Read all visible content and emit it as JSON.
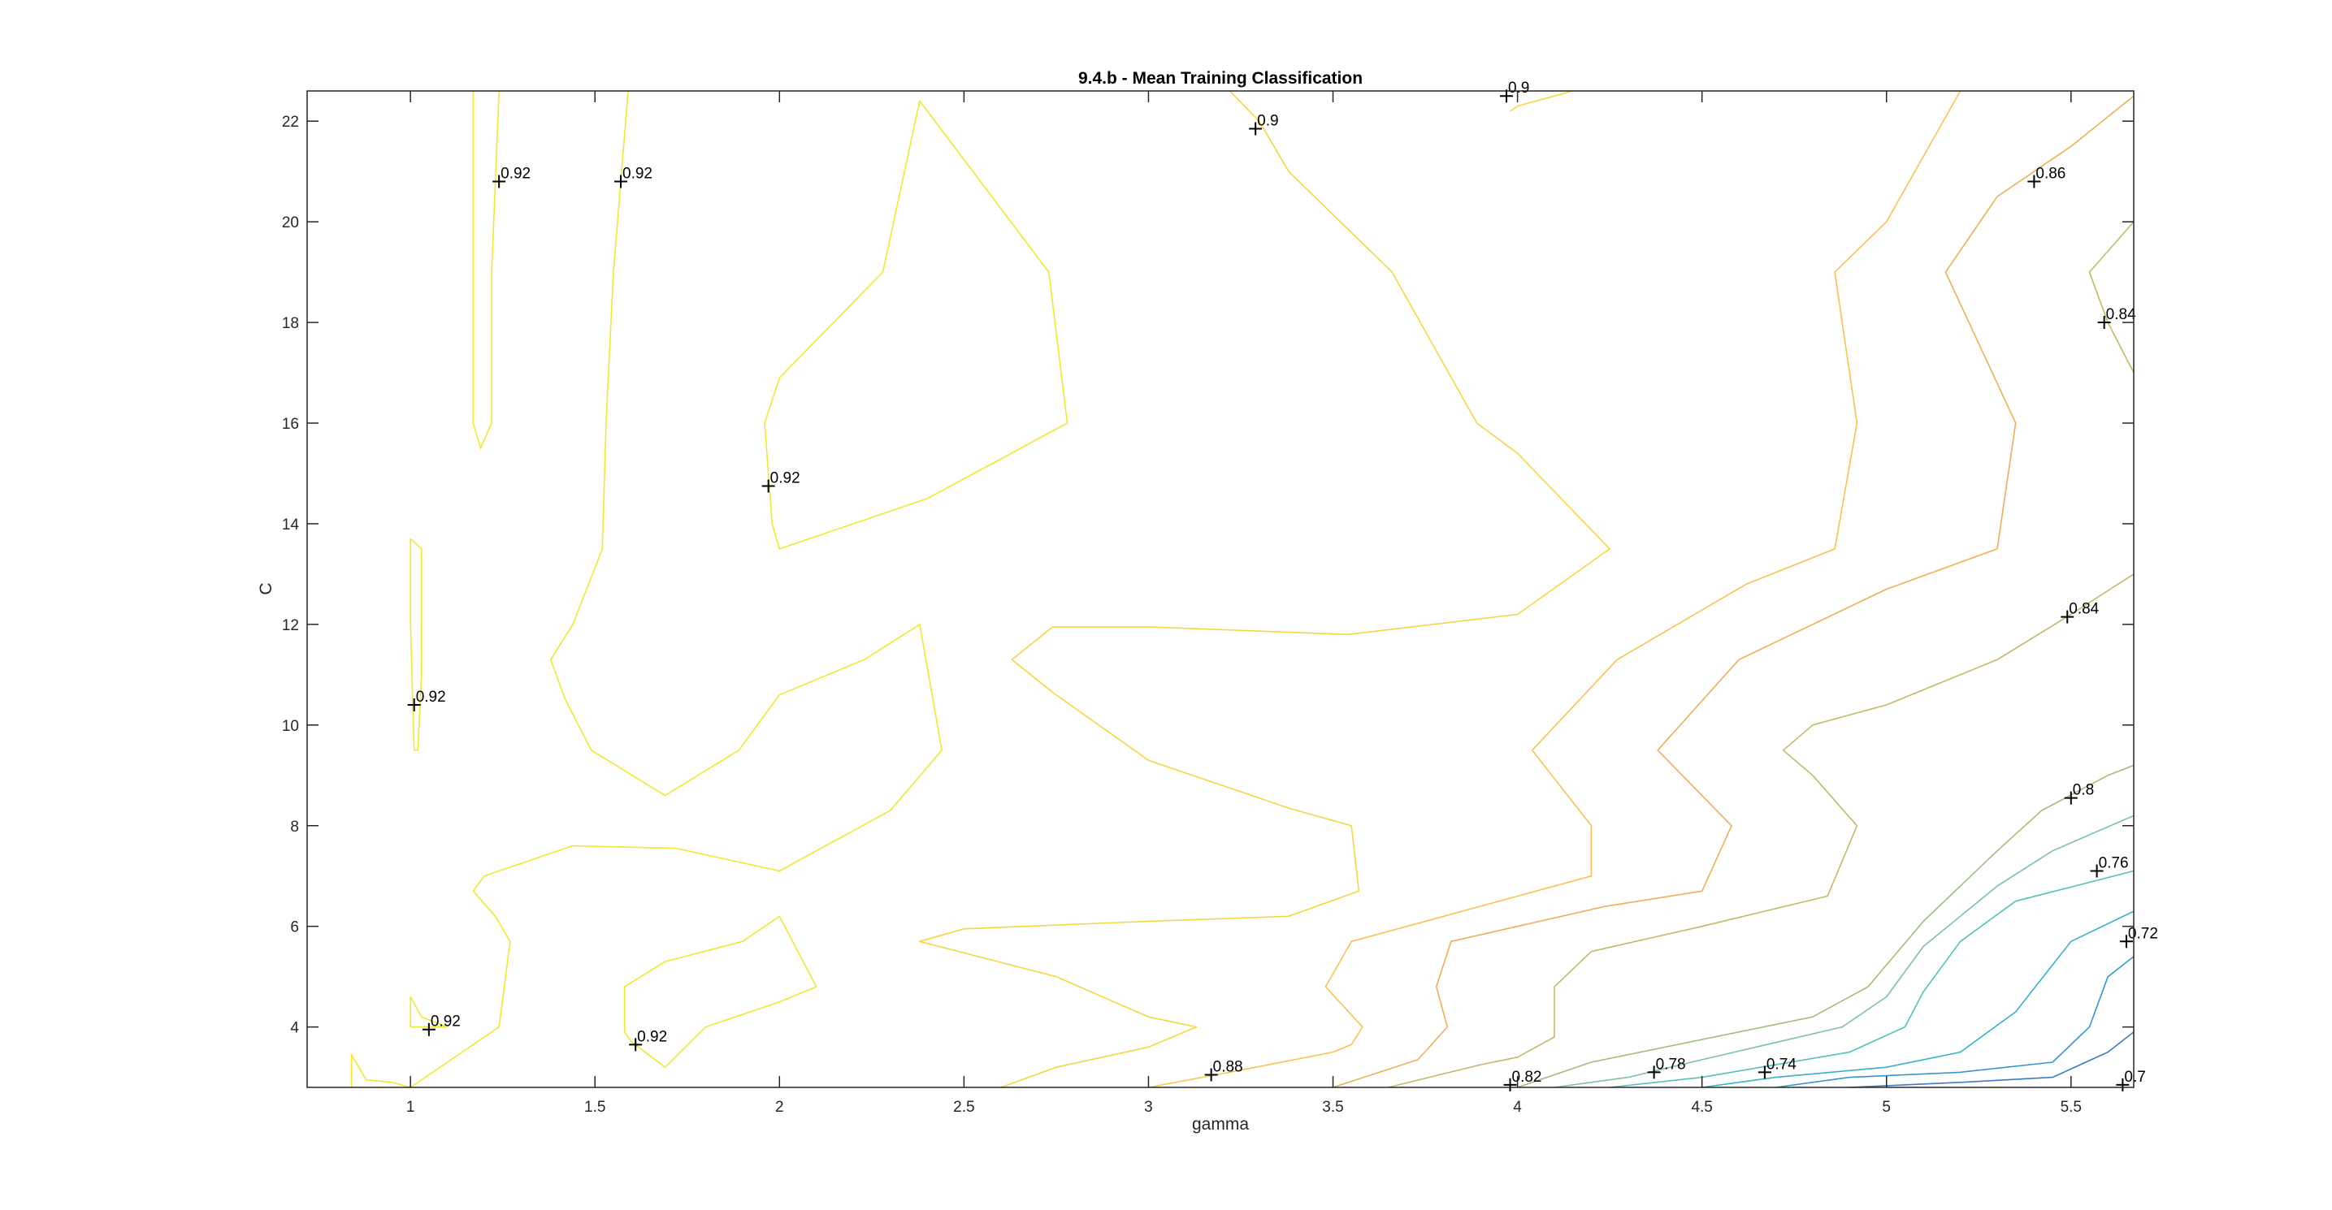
{
  "chart_data": {
    "type": "contour",
    "title": "9.4.b - Mean Training Classification",
    "xlabel": "gamma",
    "ylabel": "C",
    "xlim": [
      0.72,
      5.67
    ],
    "ylim": [
      2.8,
      22.6
    ],
    "x_ticks": [
      1,
      1.5,
      2,
      2.5,
      3,
      3.5,
      4,
      4.5,
      5,
      5.5
    ],
    "x_tick_labels": [
      "1",
      "1.5",
      "2",
      "2.5",
      "3",
      "3.5",
      "4",
      "4.5",
      "5",
      "5.5"
    ],
    "y_ticks": [
      4,
      6,
      8,
      10,
      12,
      14,
      16,
      18,
      20,
      22
    ],
    "y_tick_labels": [
      "4",
      "6",
      "8",
      "10",
      "12",
      "14",
      "16",
      "18",
      "20",
      "22"
    ],
    "grid": false,
    "colors": {
      "0.92": "#f0e830",
      "0.9": "#f5d640",
      "0.88": "#f8c250",
      "0.86": "#ebb055",
      "0.84": "#c3b868",
      "0.82": "#a0be78",
      "0.8": "#7ac49a",
      "0.78": "#52c2b8",
      "0.76": "#38b0cc",
      "0.74": "#3596cc",
      "0.72": "#3a7cc4",
      "0.7": "#4060b8"
    },
    "contour_lines": [
      {
        "level": 0.92,
        "points": [
          [
            1.17,
            22.6
          ],
          [
            1.17,
            16.0
          ],
          [
            1.19,
            15.5
          ],
          [
            1.22,
            16.0
          ],
          [
            1.22,
            19.0
          ],
          [
            1.24,
            22.6
          ]
        ]
      },
      {
        "level": 0.92,
        "points": [
          [
            1.59,
            22.6
          ],
          [
            1.55,
            19.0
          ],
          [
            1.53,
            16.0
          ],
          [
            1.52,
            13.5
          ],
          [
            1.44,
            12.0
          ],
          [
            1.38,
            11.3
          ],
          [
            1.42,
            10.5
          ],
          [
            1.49,
            9.5
          ],
          [
            1.69,
            8.6
          ],
          [
            1.89,
            9.5
          ],
          [
            2.0,
            10.6
          ],
          [
            2.23,
            11.3
          ],
          [
            2.38,
            12.0
          ],
          [
            2.44,
            9.5
          ],
          [
            2.3,
            8.3
          ],
          [
            2.0,
            7.1
          ],
          [
            1.72,
            7.55
          ],
          [
            1.44,
            7.6
          ],
          [
            1.2,
            7.0
          ],
          [
            1.17,
            6.7
          ],
          [
            1.23,
            6.2
          ],
          [
            1.27,
            5.7
          ],
          [
            1.24,
            4.0
          ],
          [
            1.1,
            3.3
          ],
          [
            1.0,
            2.8
          ]
        ]
      },
      {
        "level": 0.92,
        "points": [
          [
            1.0,
            4.0
          ],
          [
            1.0,
            4.6
          ],
          [
            1.03,
            4.2
          ],
          [
            1.1,
            4.0
          ],
          [
            1.0,
            4.0
          ]
        ]
      },
      {
        "level": 0.92,
        "points": [
          [
            1.01,
            9.5
          ],
          [
            1.0,
            12.0
          ],
          [
            1.0,
            13.7
          ],
          [
            1.03,
            13.5
          ],
          [
            1.03,
            11.0
          ],
          [
            1.02,
            9.5
          ],
          [
            1.01,
            9.5
          ]
        ]
      },
      {
        "level": 0.92,
        "points": [
          [
            1.96,
            16.0
          ],
          [
            2.0,
            16.9
          ],
          [
            2.28,
            19.0
          ],
          [
            2.38,
            22.4
          ],
          [
            2.73,
            19.0
          ],
          [
            2.78,
            16.0
          ],
          [
            2.4,
            14.5
          ],
          [
            2.0,
            13.5
          ],
          [
            1.98,
            14.0
          ],
          [
            1.96,
            16.0
          ]
        ]
      },
      {
        "level": 0.92,
        "points": [
          [
            1.58,
            3.9
          ],
          [
            1.58,
            4.8
          ],
          [
            1.69,
            5.3
          ],
          [
            1.9,
            5.7
          ],
          [
            2.0,
            6.2
          ],
          [
            2.1,
            4.8
          ],
          [
            2.0,
            4.5
          ],
          [
            1.8,
            4.0
          ],
          [
            1.69,
            3.2
          ],
          [
            1.6,
            3.7
          ],
          [
            1.58,
            3.9
          ]
        ]
      },
      {
        "level": 0.92,
        "points": [
          [
            0.84,
            2.8
          ],
          [
            0.84,
            3.45
          ],
          [
            0.88,
            2.95
          ],
          [
            0.95,
            2.9
          ],
          [
            1.0,
            2.8
          ]
        ]
      },
      {
        "level": 0.9,
        "points": [
          [
            3.22,
            22.6
          ],
          [
            3.3,
            22.0
          ],
          [
            3.38,
            21.0
          ],
          [
            3.66,
            19.0
          ],
          [
            3.89,
            16.0
          ],
          [
            4.0,
            15.4
          ],
          [
            4.25,
            13.5
          ],
          [
            4.0,
            12.2
          ],
          [
            3.54,
            11.8
          ],
          [
            3.0,
            11.95
          ],
          [
            2.74,
            11.95
          ],
          [
            2.63,
            11.3
          ],
          [
            2.74,
            10.65
          ],
          [
            3.0,
            9.3
          ],
          [
            3.38,
            8.35
          ],
          [
            3.55,
            8.0
          ],
          [
            3.57,
            6.7
          ],
          [
            3.38,
            6.2
          ],
          [
            3.0,
            6.1
          ],
          [
            2.5,
            5.95
          ],
          [
            2.38,
            5.7
          ],
          [
            2.75,
            5.0
          ],
          [
            3.0,
            4.2
          ],
          [
            3.13,
            4.0
          ],
          [
            3.0,
            3.6
          ],
          [
            2.75,
            3.2
          ],
          [
            2.6,
            2.8
          ]
        ]
      },
      {
        "level": 0.9,
        "points": [
          [
            3.98,
            22.2
          ],
          [
            4.0,
            22.3
          ],
          [
            4.15,
            22.6
          ]
        ]
      },
      {
        "level": 0.88,
        "points": [
          [
            3.0,
            2.8
          ],
          [
            3.22,
            3.1
          ],
          [
            3.5,
            3.5
          ],
          [
            3.55,
            3.65
          ],
          [
            3.58,
            4.0
          ],
          [
            3.48,
            4.8
          ],
          [
            3.55,
            5.7
          ],
          [
            3.8,
            6.2
          ],
          [
            4.0,
            6.6
          ],
          [
            4.2,
            7.0
          ],
          [
            4.2,
            8.0
          ],
          [
            4.04,
            9.5
          ],
          [
            4.27,
            11.3
          ],
          [
            4.62,
            12.8
          ],
          [
            4.86,
            13.5
          ],
          [
            4.92,
            16.0
          ],
          [
            4.86,
            19.0
          ],
          [
            5.0,
            20.0
          ],
          [
            5.2,
            22.6
          ]
        ]
      },
      {
        "level": 0.86,
        "points": [
          [
            3.5,
            2.8
          ],
          [
            3.73,
            3.35
          ],
          [
            3.81,
            4.0
          ],
          [
            3.78,
            4.8
          ],
          [
            3.82,
            5.7
          ],
          [
            4.0,
            6.0
          ],
          [
            4.24,
            6.4
          ],
          [
            4.5,
            6.7
          ],
          [
            4.58,
            8.0
          ],
          [
            4.38,
            9.5
          ],
          [
            4.6,
            11.3
          ],
          [
            5.0,
            12.7
          ],
          [
            5.3,
            13.5
          ],
          [
            5.35,
            16.0
          ],
          [
            5.16,
            19.0
          ],
          [
            5.3,
            20.5
          ],
          [
            5.5,
            21.5
          ],
          [
            5.67,
            22.5
          ]
        ]
      },
      {
        "level": 0.84,
        "points": [
          [
            3.65,
            2.8
          ],
          [
            3.9,
            3.25
          ],
          [
            4.0,
            3.4
          ],
          [
            4.1,
            3.8
          ],
          [
            4.1,
            4.8
          ],
          [
            4.2,
            5.5
          ],
          [
            4.5,
            6.0
          ],
          [
            4.84,
            6.6
          ],
          [
            4.92,
            8.0
          ],
          [
            4.8,
            9.0
          ],
          [
            4.72,
            9.5
          ],
          [
            4.8,
            10.0
          ],
          [
            5.0,
            10.4
          ],
          [
            5.3,
            11.3
          ],
          [
            5.5,
            12.2
          ],
          [
            5.67,
            13.0
          ]
        ]
      },
      {
        "level": 0.84,
        "points": [
          [
            5.67,
            20.0
          ],
          [
            5.55,
            19.0
          ],
          [
            5.6,
            18.0
          ],
          [
            5.67,
            17.0
          ]
        ]
      },
      {
        "level": 0.82,
        "points": [
          [
            4.0,
            2.8
          ],
          [
            4.2,
            3.3
          ],
          [
            4.4,
            3.6
          ],
          [
            4.8,
            4.2
          ],
          [
            4.95,
            4.8
          ],
          [
            5.1,
            6.1
          ],
          [
            5.3,
            7.5
          ],
          [
            5.42,
            8.3
          ],
          [
            5.6,
            9.0
          ],
          [
            5.67,
            9.2
          ]
        ]
      },
      {
        "level": 0.8,
        "points": [
          [
            4.1,
            2.8
          ],
          [
            4.3,
            3.0
          ],
          [
            4.5,
            3.35
          ],
          [
            4.88,
            4.0
          ],
          [
            5.0,
            4.6
          ],
          [
            5.1,
            5.6
          ],
          [
            5.3,
            6.8
          ],
          [
            5.45,
            7.5
          ],
          [
            5.67,
            8.2
          ]
        ]
      },
      {
        "level": 0.78,
        "points": [
          [
            4.25,
            2.8
          ],
          [
            4.5,
            3.0
          ],
          [
            4.9,
            3.5
          ],
          [
            5.05,
            4.0
          ],
          [
            5.1,
            4.7
          ],
          [
            5.2,
            5.7
          ],
          [
            5.35,
            6.5
          ],
          [
            5.67,
            7.1
          ]
        ]
      },
      {
        "level": 0.76,
        "points": [
          [
            4.5,
            2.8
          ],
          [
            4.7,
            3.0
          ],
          [
            5.0,
            3.2
          ],
          [
            5.2,
            3.5
          ],
          [
            5.35,
            4.3
          ],
          [
            5.5,
            5.7
          ],
          [
            5.67,
            6.3
          ]
        ]
      },
      {
        "level": 0.74,
        "points": [
          [
            4.7,
            2.8
          ],
          [
            4.9,
            3.0
          ],
          [
            5.2,
            3.1
          ],
          [
            5.45,
            3.3
          ],
          [
            5.55,
            4.0
          ],
          [
            5.6,
            5.0
          ],
          [
            5.67,
            5.4
          ]
        ]
      },
      {
        "level": 0.72,
        "points": [
          [
            4.9,
            2.8
          ],
          [
            5.2,
            2.9
          ],
          [
            5.45,
            3.0
          ],
          [
            5.6,
            3.5
          ],
          [
            5.67,
            3.9
          ]
        ]
      }
    ],
    "labels": [
      {
        "text": "0.92",
        "x": 1.24,
        "y": 20.8
      },
      {
        "text": "0.92",
        "x": 1.57,
        "y": 20.8
      },
      {
        "text": "0.92",
        "x": 1.97,
        "y": 14.75
      },
      {
        "text": "0.92",
        "x": 1.01,
        "y": 10.4
      },
      {
        "text": "0.92",
        "x": 1.05,
        "y": 3.95
      },
      {
        "text": "0.92",
        "x": 1.61,
        "y": 3.65
      },
      {
        "text": "0.9",
        "x": 3.29,
        "y": 21.85
      },
      {
        "text": "0.9",
        "x": 3.97,
        "y": 22.5
      },
      {
        "text": "0.88",
        "x": 3.17,
        "y": 3.05
      },
      {
        "text": "0.86",
        "x": 5.4,
        "y": 20.8
      },
      {
        "text": "0.84",
        "x": 5.59,
        "y": 18.0
      },
      {
        "text": "0.84",
        "x": 5.49,
        "y": 12.15
      },
      {
        "text": "0.82",
        "x": 3.98,
        "y": 2.85
      },
      {
        "text": "0.8",
        "x": 5.5,
        "y": 8.55
      },
      {
        "text": "0.78",
        "x": 4.37,
        "y": 3.1
      },
      {
        "text": "0.76",
        "x": 5.57,
        "y": 7.1
      },
      {
        "text": "0.74",
        "x": 4.67,
        "y": 3.1
      },
      {
        "text": "0.72",
        "x": 5.65,
        "y": 5.7
      },
      {
        "text": "0.7",
        "x": 5.64,
        "y": 2.85
      }
    ]
  }
}
